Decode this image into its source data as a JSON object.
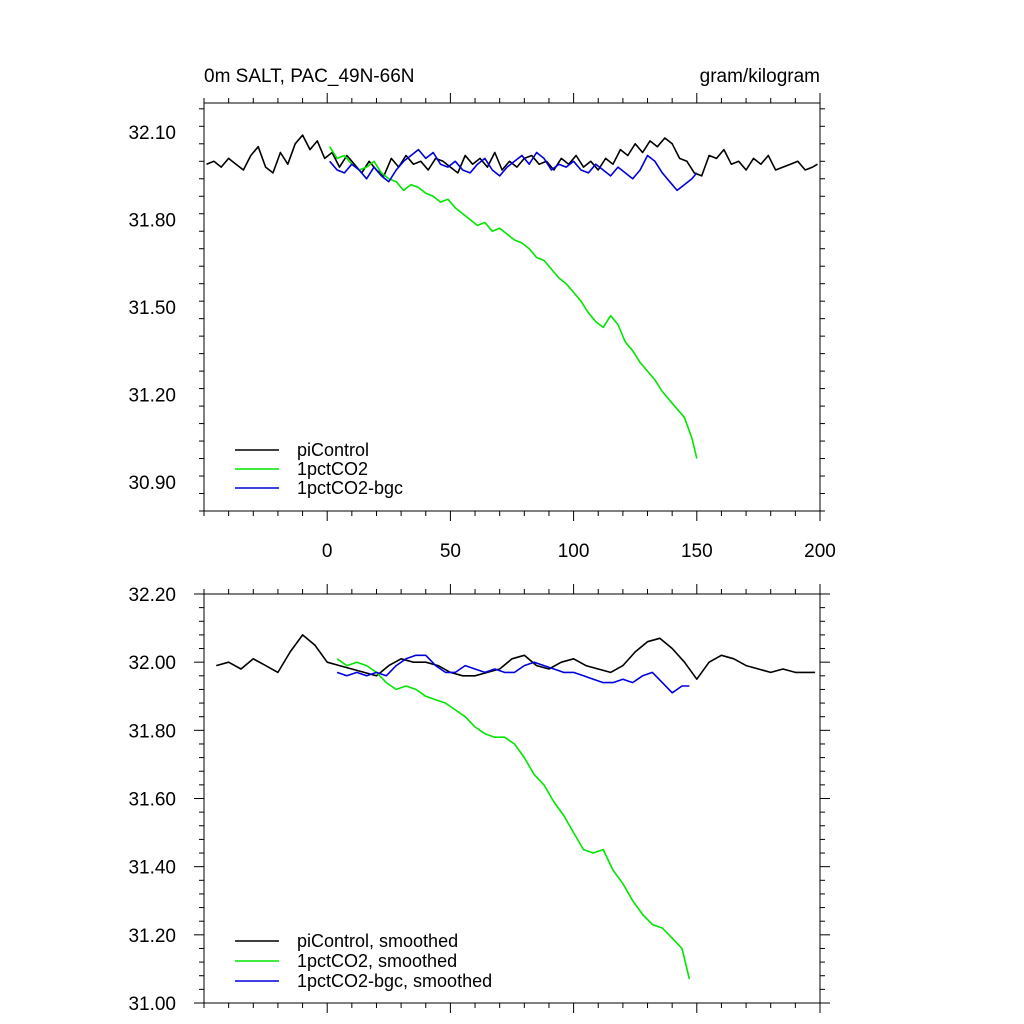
{
  "chart_data": [
    {
      "type": "line",
      "title": "0m SALT, PAC_49N-66N",
      "units": "gram/kilogram",
      "xlabel": "",
      "ylabel": "",
      "xlim": [
        -50,
        200
      ],
      "ylim": [
        30.8,
        32.2
      ],
      "x_ticks": [
        0,
        50,
        100,
        150,
        200
      ],
      "y_ticks": [
        30.9,
        31.2,
        31.5,
        31.8,
        32.1
      ],
      "y_tick_labels": [
        "30.90",
        "31.20",
        "31.50",
        "31.80",
        "32.10"
      ],
      "legend_position": "bottom-left",
      "series": [
        {
          "name": "piControl",
          "color": "#000000",
          "x": [
            -49,
            -46,
            -43,
            -40,
            -37,
            -34,
            -31,
            -28,
            -25,
            -22,
            -19,
            -16,
            -13,
            -10,
            -7,
            -4,
            -1,
            2,
            5,
            8,
            11,
            14,
            17,
            20,
            23,
            26,
            29,
            32,
            35,
            38,
            41,
            44,
            47,
            50,
            53,
            56,
            59,
            62,
            65,
            68,
            71,
            74,
            77,
            80,
            83,
            86,
            89,
            92,
            95,
            98,
            101,
            104,
            107,
            110,
            113,
            116,
            119,
            122,
            125,
            128,
            131,
            134,
            137,
            140,
            143,
            146,
            149,
            152,
            155,
            158,
            161,
            164,
            167,
            170,
            173,
            176,
            179,
            182,
            185,
            188,
            191,
            194,
            197,
            199
          ],
          "values": [
            31.99,
            32.0,
            31.98,
            32.01,
            31.99,
            31.97,
            32.02,
            32.05,
            31.98,
            31.96,
            32.03,
            31.99,
            32.06,
            32.09,
            32.04,
            32.07,
            32.01,
            32.03,
            31.98,
            32.02,
            31.99,
            31.96,
            32.0,
            31.97,
            31.95,
            32.01,
            31.98,
            32.02,
            31.99,
            32.0,
            31.97,
            32.01,
            32.0,
            31.98,
            31.96,
            32.02,
            31.99,
            32.01,
            31.98,
            32.03,
            31.97,
            32.0,
            31.98,
            32.01,
            32.02,
            31.99,
            32.0,
            31.97,
            32.01,
            31.99,
            32.02,
            31.98,
            32.0,
            31.97,
            32.01,
            31.99,
            32.04,
            32.02,
            32.06,
            32.03,
            32.07,
            32.05,
            32.08,
            32.06,
            32.01,
            32.0,
            31.96,
            31.95,
            32.02,
            32.01,
            32.04,
            31.99,
            32.0,
            31.97,
            32.01,
            31.99,
            32.02,
            31.97,
            31.98,
            31.99,
            32.0,
            31.97,
            31.98,
            31.99
          ]
        },
        {
          "name": "1pctCO2",
          "color": "#00e600",
          "x": [
            1,
            4,
            7,
            10,
            13,
            16,
            19,
            22,
            25,
            28,
            31,
            34,
            37,
            40,
            43,
            46,
            49,
            52,
            55,
            58,
            61,
            64,
            67,
            70,
            73,
            76,
            79,
            82,
            85,
            88,
            91,
            94,
            97,
            100,
            103,
            106,
            109,
            112,
            115,
            118,
            121,
            124,
            127,
            130,
            133,
            136,
            139,
            142,
            145,
            148,
            150
          ],
          "values": [
            32.05,
            32.01,
            32.02,
            31.99,
            31.97,
            31.98,
            32.0,
            31.96,
            31.94,
            31.93,
            31.9,
            31.92,
            31.91,
            31.89,
            31.88,
            31.86,
            31.87,
            31.84,
            31.82,
            31.8,
            31.78,
            31.79,
            31.76,
            31.77,
            31.75,
            31.73,
            31.72,
            31.7,
            31.67,
            31.66,
            31.63,
            31.6,
            31.58,
            31.55,
            31.52,
            31.48,
            31.45,
            31.43,
            31.47,
            31.44,
            31.38,
            31.35,
            31.31,
            31.28,
            31.25,
            31.21,
            31.18,
            31.15,
            31.12,
            31.05,
            30.98
          ]
        },
        {
          "name": "1pctCO2-bgc",
          "color": "#0000dd",
          "x": [
            1,
            4,
            7,
            10,
            13,
            16,
            19,
            22,
            25,
            28,
            31,
            34,
            37,
            40,
            43,
            46,
            49,
            52,
            55,
            58,
            61,
            64,
            67,
            70,
            73,
            76,
            79,
            82,
            85,
            88,
            91,
            94,
            97,
            100,
            103,
            106,
            109,
            112,
            115,
            118,
            121,
            124,
            127,
            130,
            133,
            136,
            139,
            142,
            145,
            148,
            150
          ],
          "values": [
            32.0,
            31.97,
            31.96,
            31.99,
            31.97,
            31.94,
            31.98,
            31.95,
            31.93,
            31.97,
            32.0,
            32.02,
            32.04,
            32.01,
            32.03,
            31.99,
            31.98,
            32.0,
            31.97,
            31.96,
            31.99,
            32.01,
            31.97,
            31.95,
            31.98,
            32.0,
            32.02,
            31.99,
            32.03,
            32.01,
            31.97,
            31.99,
            31.98,
            32.0,
            31.97,
            31.96,
            31.99,
            31.97,
            31.95,
            31.98,
            31.96,
            31.94,
            31.97,
            32.02,
            32.0,
            31.96,
            31.93,
            31.9,
            31.92,
            31.94,
            31.96
          ]
        }
      ]
    },
    {
      "type": "line",
      "title": "",
      "xlabel": "",
      "ylabel": "",
      "xlim": [
        -50,
        200
      ],
      "ylim": [
        31.0,
        32.2
      ],
      "x_ticks": [
        0,
        50,
        100,
        150,
        200
      ],
      "y_ticks": [
        31.0,
        31.2,
        31.4,
        31.6,
        31.8,
        32.0,
        32.2
      ],
      "y_tick_labels": [
        "31.00",
        "31.20",
        "31.40",
        "31.60",
        "31.80",
        "32.00",
        "32.20"
      ],
      "legend_position": "bottom-left",
      "series": [
        {
          "name": "piControl, smoothed",
          "color": "#000000",
          "x": [
            -45,
            -40,
            -35,
            -30,
            -25,
            -20,
            -15,
            -10,
            -5,
            0,
            5,
            10,
            15,
            20,
            25,
            30,
            35,
            40,
            45,
            50,
            55,
            60,
            65,
            70,
            75,
            80,
            85,
            90,
            95,
            100,
            105,
            110,
            115,
            120,
            125,
            130,
            135,
            140,
            145,
            150,
            155,
            160,
            165,
            170,
            175,
            180,
            185,
            190,
            195,
            198
          ],
          "values": [
            31.99,
            32.0,
            31.98,
            32.01,
            31.99,
            31.97,
            32.03,
            32.08,
            32.05,
            32.0,
            31.99,
            31.98,
            31.97,
            31.96,
            31.99,
            32.01,
            32.0,
            32.0,
            31.99,
            31.97,
            31.96,
            31.96,
            31.97,
            31.98,
            32.01,
            32.02,
            31.99,
            31.98,
            32.0,
            32.01,
            31.99,
            31.98,
            31.97,
            31.99,
            32.03,
            32.06,
            32.07,
            32.04,
            32.0,
            31.95,
            32.0,
            32.02,
            32.01,
            31.99,
            31.98,
            31.97,
            31.98,
            31.97,
            31.97,
            31.97
          ]
        },
        {
          "name": "1pctCO2, smoothed",
          "color": "#00e600",
          "x": [
            4,
            8,
            12,
            16,
            20,
            24,
            28,
            32,
            36,
            40,
            44,
            48,
            52,
            56,
            60,
            64,
            68,
            72,
            76,
            80,
            84,
            88,
            92,
            96,
            100,
            104,
            108,
            112,
            116,
            120,
            124,
            128,
            132,
            136,
            140,
            144,
            147
          ],
          "values": [
            32.01,
            31.99,
            32.0,
            31.99,
            31.97,
            31.94,
            31.92,
            31.93,
            31.92,
            31.9,
            31.89,
            31.88,
            31.86,
            31.84,
            31.81,
            31.79,
            31.78,
            31.78,
            31.76,
            31.72,
            31.67,
            31.64,
            31.59,
            31.55,
            31.5,
            31.45,
            31.44,
            31.45,
            31.39,
            31.35,
            31.3,
            31.26,
            31.23,
            31.22,
            31.19,
            31.16,
            31.07
          ]
        },
        {
          "name": "1pctCO2-bgc, smoothed",
          "color": "#0000dd",
          "x": [
            4,
            8,
            12,
            16,
            20,
            24,
            28,
            32,
            36,
            40,
            44,
            48,
            52,
            56,
            60,
            64,
            68,
            72,
            76,
            80,
            84,
            88,
            92,
            96,
            100,
            104,
            108,
            112,
            116,
            120,
            124,
            128,
            132,
            136,
            140,
            144,
            147
          ],
          "values": [
            31.97,
            31.96,
            31.97,
            31.96,
            31.97,
            31.96,
            31.99,
            32.01,
            32.02,
            32.02,
            31.99,
            31.97,
            31.97,
            31.99,
            31.98,
            31.97,
            31.98,
            31.97,
            31.97,
            31.99,
            32.0,
            31.99,
            31.98,
            31.97,
            31.97,
            31.96,
            31.95,
            31.94,
            31.94,
            31.95,
            31.94,
            31.96,
            31.97,
            31.94,
            31.91,
            31.93,
            31.93
          ]
        }
      ]
    }
  ]
}
